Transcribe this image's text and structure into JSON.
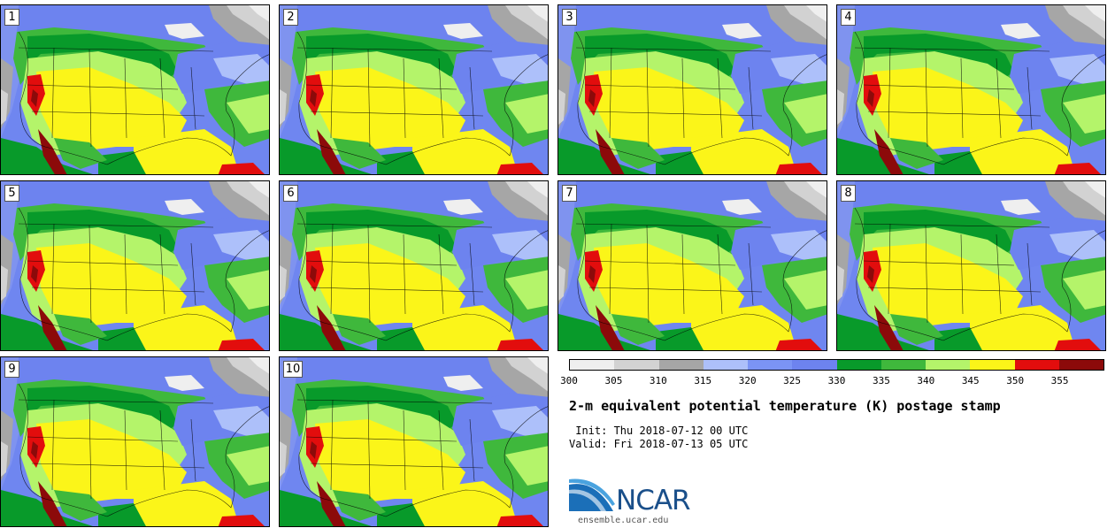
{
  "panels": [
    {
      "label": "1"
    },
    {
      "label": "2"
    },
    {
      "label": "3"
    },
    {
      "label": "4"
    },
    {
      "label": "5"
    },
    {
      "label": "6"
    },
    {
      "label": "7"
    },
    {
      "label": "8"
    },
    {
      "label": "9"
    },
    {
      "label": "10"
    }
  ],
  "colorbar": {
    "ticks": [
      "300",
      "305",
      "310",
      "315",
      "320",
      "325",
      "330",
      "335",
      "340",
      "345",
      "350",
      "355"
    ],
    "colors": [
      "#efefef",
      "#d2d2d2",
      "#a6a6a6",
      "#adc0fa",
      "#7b94f5",
      "#6d83ef",
      "#089a2a",
      "#3fb83c",
      "#b4f46a",
      "#fbf519",
      "#e20d0d",
      "#8c0a0a"
    ]
  },
  "title": "2-m equivalent potential temperature (K) postage stamp",
  "init": " Init: Thu 2018-07-12 00 UTC",
  "valid": "Valid: Fri 2018-07-13 05 UTC",
  "logo": {
    "text": "NCAR",
    "website": "ensemble.ucar.edu"
  }
}
